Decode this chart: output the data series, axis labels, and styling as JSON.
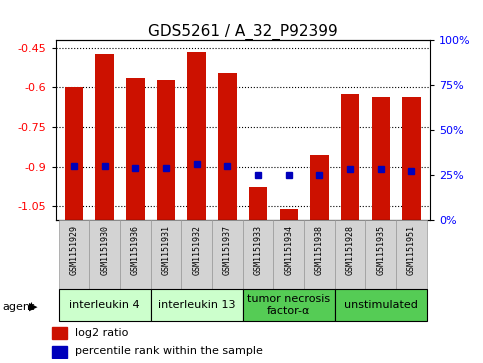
{
  "title": "GDS5261 / A_32_P92399",
  "samples": [
    "GSM1151929",
    "GSM1151930",
    "GSM1151936",
    "GSM1151931",
    "GSM1151932",
    "GSM1151937",
    "GSM1151933",
    "GSM1151934",
    "GSM1151938",
    "GSM1151928",
    "GSM1151935",
    "GSM1151951"
  ],
  "log2_ratio": [
    -0.6,
    -0.475,
    -0.565,
    -0.57,
    -0.465,
    -0.545,
    -0.975,
    -1.06,
    -0.855,
    -0.625,
    -0.635,
    -0.635
  ],
  "percentile_rank": [
    30,
    30,
    29,
    29,
    31,
    30,
    25,
    25,
    25,
    28,
    28,
    27
  ],
  "ylim": [
    -1.1,
    -0.42
  ],
  "yticks_left": [
    -1.05,
    -0.9,
    -0.75,
    -0.6,
    -0.45
  ],
  "yticks_right": [
    0,
    25,
    50,
    75,
    100
  ],
  "bar_color": "#cc1100",
  "dot_color": "#0000bb",
  "bar_width": 0.6,
  "agent_groups": [
    {
      "label": "interleukin 4",
      "spans": [
        0,
        2
      ],
      "color": "#ccffcc"
    },
    {
      "label": "interleukin 13",
      "spans": [
        3,
        5
      ],
      "color": "#ccffcc"
    },
    {
      "label": "tumor necrosis\nfactor-α",
      "spans": [
        6,
        8
      ],
      "color": "#55cc55"
    },
    {
      "label": "unstimulated",
      "spans": [
        9,
        11
      ],
      "color": "#55cc55"
    }
  ],
  "legend_bar_label": "log2 ratio",
  "legend_dot_label": "percentile rank within the sample",
  "agent_label": "agent",
  "title_fontsize": 11,
  "tick_fontsize": 8,
  "sample_fontsize": 6,
  "group_fontsize": 8,
  "legend_fontsize": 8
}
